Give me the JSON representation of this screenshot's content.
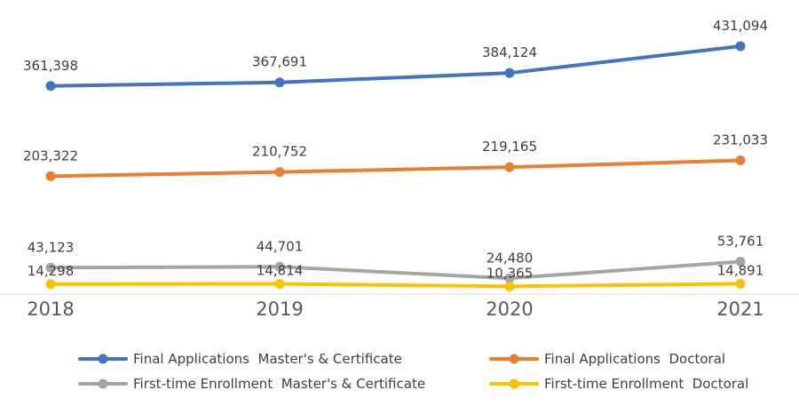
{
  "chart_data": {
    "type": "line",
    "categories": [
      "2018",
      "2019",
      "2020",
      "2021"
    ],
    "series": [
      {
        "name": "Final Applications  Master's & Certificate",
        "values": [
          361398,
          367691,
          384124,
          431094
        ],
        "labels": [
          "361,398",
          "367,691",
          "384,124",
          "431,094"
        ],
        "color": "#4472C4"
      },
      {
        "name": "Final Applications  Doctoral",
        "values": [
          203322,
          210752,
          219165,
          231033
        ],
        "labels": [
          "203,322",
          "210,752",
          "219,165",
          "231,033"
        ],
        "color": "#ED7D31"
      },
      {
        "name": "First-time Enrollment  Master's & Certificate",
        "values": [
          43123,
          44701,
          24480,
          53761
        ],
        "labels": [
          "43,123",
          "44,701",
          "24,480",
          "53,761"
        ],
        "color": "#A5A5A5"
      },
      {
        "name": "First-time Enrollment  Doctoral",
        "values": [
          14298,
          14814,
          10365,
          14891
        ],
        "labels": [
          "14,298",
          "14,814",
          "10,365",
          "14,891"
        ],
        "color": "#FFC000"
      }
    ],
    "title": "",
    "xlabel": "",
    "ylabel": "",
    "ylim": [
      0,
      431094
    ],
    "grid": false,
    "legend_position": "bottom",
    "baseline_color": "#D9D9D9"
  }
}
